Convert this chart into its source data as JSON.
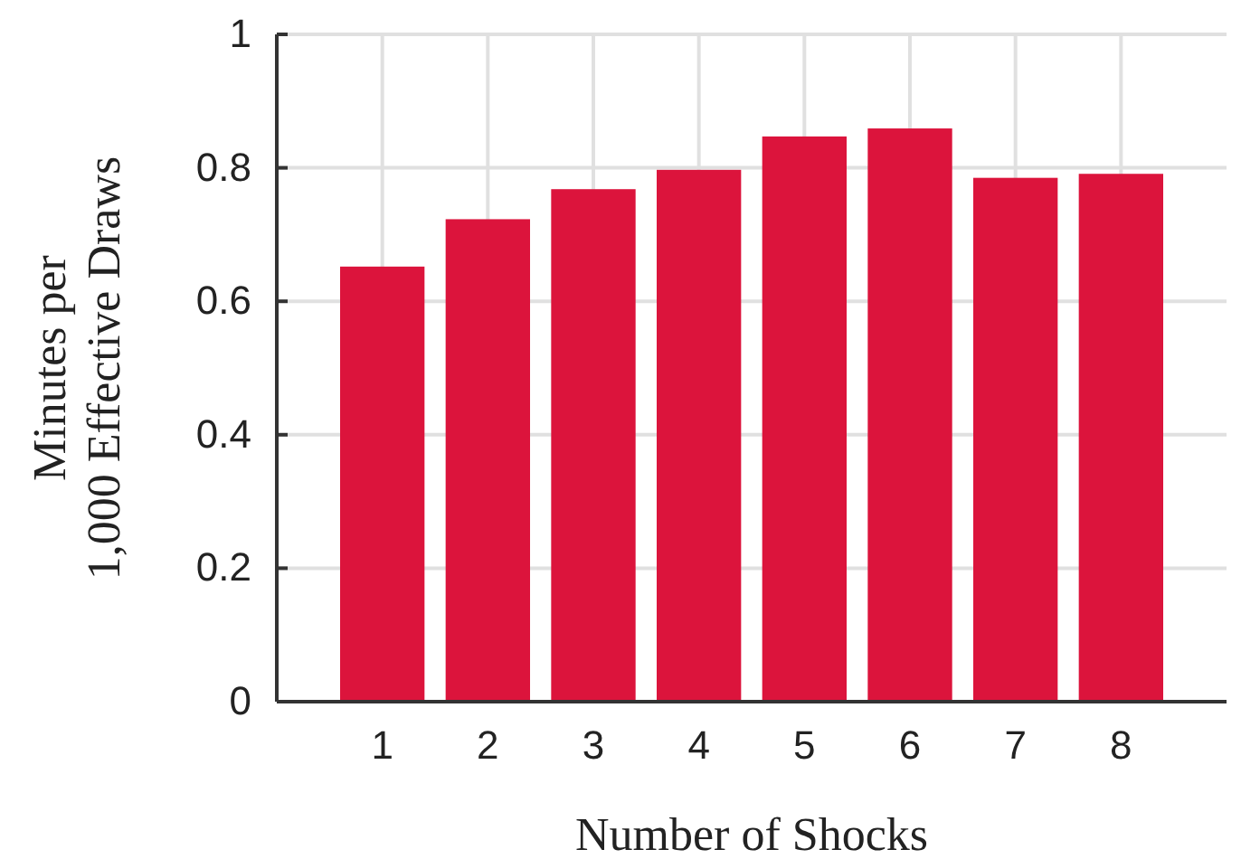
{
  "chart_data": {
    "type": "bar",
    "xlabel": "Number of Shocks",
    "ylabel": "Minutes per\n1,000 Effective Draws",
    "categories": [
      "1",
      "2",
      "3",
      "4",
      "5",
      "6",
      "7",
      "8"
    ],
    "values": [
      0.652,
      0.723,
      0.768,
      0.797,
      0.847,
      0.859,
      0.785,
      0.791
    ],
    "color": "#dc143c",
    "ylim": [
      0,
      1
    ],
    "yticks": [
      0,
      0.2,
      0.4,
      0.6,
      0.8,
      1
    ],
    "grid": true
  }
}
